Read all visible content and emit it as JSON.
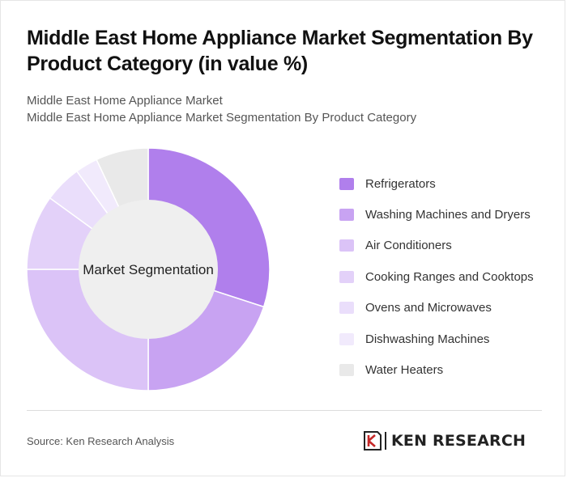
{
  "title": "Middle East Home Appliance Market Segmentation By Product Category (in value %)",
  "subtitle_line1": "Middle East Home Appliance Market",
  "subtitle_line2": "Middle East Home Appliance Market Segmentation By Product Category",
  "center_label": "Market Segmentation",
  "source": "Source: Ken Research Analysis",
  "logo": {
    "name": "KEN RESEARCH",
    "icon": "ken-research-logo-icon"
  },
  "chart_data": {
    "type": "pie",
    "donut": true,
    "legend_position": "right",
    "categories": [
      "Refrigerators",
      "Washing Machines and Dryers",
      "Air Conditioners",
      "Cooking Ranges and Cooktops",
      "Ovens and Microwaves",
      "Dishwashing Machines",
      "Water Heaters"
    ],
    "values": [
      30,
      20,
      25,
      10,
      5,
      3,
      7
    ],
    "colors": [
      "#b07fec",
      "#c8a3f2",
      "#dbc3f7",
      "#e3d1f9",
      "#eadefb",
      "#f1eafc",
      "#e9e9e9"
    ]
  }
}
